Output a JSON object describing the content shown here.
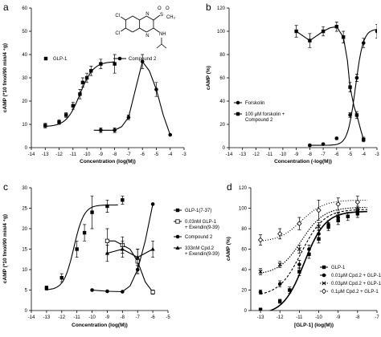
{
  "chart_data": [
    {
      "panel_label": "a",
      "type": "line",
      "xlabel": "Concentration (log(M))",
      "ylabel": "cAMP (*10 fmol/90 min/4 ⁴g)",
      "xlim": [
        -14,
        -3
      ],
      "ylim": [
        0,
        60
      ],
      "xticks": [
        -14,
        -13,
        -12,
        -11,
        -10,
        -9,
        -8,
        -7,
        -6,
        -5,
        -4,
        -3
      ],
      "yticks": [
        0,
        10,
        20,
        30,
        40,
        50,
        60
      ],
      "structure": {
        "atoms": [
          "Cl",
          "Cl",
          "N",
          "N",
          "S",
          "O",
          "O",
          "CH₃",
          "NH"
        ]
      },
      "legend_position": "middle",
      "series": [
        {
          "name": "GLP-1",
          "marker": "square",
          "points": [
            {
              "x": -13,
              "y": 9.5,
              "err": 1
            },
            {
              "x": -12,
              "y": 11,
              "err": 1
            },
            {
              "x": -11.5,
              "y": 14,
              "err": 1
            },
            {
              "x": -11,
              "y": 18,
              "err": 1.5
            },
            {
              "x": -10.5,
              "y": 23,
              "err": 2
            },
            {
              "x": -10.3,
              "y": 28,
              "err": 2
            },
            {
              "x": -10,
              "y": 30,
              "err": 2
            },
            {
              "x": -9.7,
              "y": 33,
              "err": 2
            },
            {
              "x": -9,
              "y": 36,
              "err": 2
            },
            {
              "x": -8,
              "y": 36,
              "err": 4
            }
          ],
          "curve": {
            "bottom": 9,
            "top": 37,
            "logEC50": -10.5,
            "hill": 0.9,
            "xmin": -13,
            "xmax": -8
          }
        },
        {
          "name": "Compound 2",
          "marker": "circle",
          "points": [
            {
              "x": -9,
              "y": 7.5,
              "err": 1
            },
            {
              "x": -8,
              "y": 7.5,
              "err": 1
            },
            {
              "x": -7,
              "y": 13,
              "err": 1
            },
            {
              "x": -6,
              "y": 37,
              "err": 3
            },
            {
              "x": -5,
              "y": 25,
              "err": 3
            },
            {
              "x": -4,
              "y": 5.5,
              "err": 0
            }
          ],
          "path": [
            [
              -9.5,
              7.5
            ],
            [
              -8,
              7.5
            ],
            [
              -7.5,
              9
            ],
            [
              -7,
              13
            ],
            [
              -6.5,
              25
            ],
            [
              -6,
              37
            ],
            [
              -5.5,
              33
            ],
            [
              -5,
              25
            ],
            [
              -4.5,
              14
            ],
            [
              -4,
              5.5
            ]
          ]
        }
      ]
    },
    {
      "panel_label": "b",
      "type": "line",
      "xlabel": "Concentration (-log(M))",
      "ylabel": "cAMP (%)",
      "xlim": [
        -14,
        -3
      ],
      "ylim": [
        0,
        120
      ],
      "xticks": [
        -14,
        -13,
        -12,
        -11,
        -10,
        -9,
        -8,
        -7,
        -6,
        -5,
        -4,
        -3
      ],
      "yticks": [
        0,
        20,
        40,
        60,
        80,
        100,
        120
      ],
      "legend_position": "bottom-left",
      "series": [
        {
          "name": "Forskolin",
          "marker": "circle",
          "points": [
            {
              "x": -8,
              "y": 2,
              "err": 1
            },
            {
              "x": -7,
              "y": 3,
              "err": 1
            },
            {
              "x": -6,
              "y": 8,
              "err": 1
            },
            {
              "x": -5,
              "y": 28,
              "err": 2
            },
            {
              "x": -4.5,
              "y": 60,
              "err": 3
            },
            {
              "x": -4,
              "y": 90,
              "err": 4
            },
            {
              "x": -3,
              "y": 100,
              "err": 6
            }
          ],
          "curve": {
            "bottom": 2,
            "top": 102,
            "logEC50": -4.6,
            "hill": 1.5,
            "xmin": -8,
            "xmax": -3
          }
        },
        {
          "name": "100 μM forskolin + Compound 2",
          "marker": "square",
          "points": [
            {
              "x": -9,
              "y": 100,
              "err": 5
            },
            {
              "x": -8,
              "y": 92,
              "err": 6
            },
            {
              "x": -7,
              "y": 100,
              "err": 4
            },
            {
              "x": -6,
              "y": 104,
              "err": 4
            },
            {
              "x": -5.5,
              "y": 95,
              "err": 5
            },
            {
              "x": -5,
              "y": 52,
              "err": 4
            },
            {
              "x": -4.5,
              "y": 28,
              "err": 3
            },
            {
              "x": -4,
              "y": 7,
              "err": 2
            }
          ],
          "path": [
            [
              -9,
              100
            ],
            [
              -8,
              92
            ],
            [
              -7.5,
              96
            ],
            [
              -7,
              100
            ],
            [
              -6.5,
              103
            ],
            [
              -6,
              104
            ],
            [
              -5.5,
              95
            ],
            [
              -5.2,
              75
            ],
            [
              -5,
              52
            ],
            [
              -4.7,
              35
            ],
            [
              -4.5,
              28
            ],
            [
              -4.2,
              15
            ],
            [
              -4,
              7
            ]
          ]
        }
      ]
    },
    {
      "panel_label": "c",
      "type": "line",
      "xlabel": "Concentration (log(M))",
      "ylabel": "cAMP (*10 fmol/90 min/4 ⁴g)",
      "xlim": [
        -14,
        -5
      ],
      "ylim": [
        0,
        30
      ],
      "xticks": [
        -14,
        -13,
        -12,
        -11,
        -10,
        -9,
        -8,
        -7,
        -6,
        -5
      ],
      "yticks": [
        0,
        5,
        10,
        15,
        20,
        25,
        30
      ],
      "legend_position": "right",
      "series": [
        {
          "name": "GLP-1(7-37)",
          "marker": "square",
          "points": [
            {
              "x": -13,
              "y": 5.5,
              "err": 0.5
            },
            {
              "x": -12,
              "y": 8,
              "err": 1
            },
            {
              "x": -11,
              "y": 15,
              "err": 2
            },
            {
              "x": -10.5,
              "y": 19,
              "err": 2
            },
            {
              "x": -10,
              "y": 24,
              "err": 4
            },
            {
              "x": -9,
              "y": 25.5,
              "err": 1.5
            },
            {
              "x": -8,
              "y": 27,
              "err": 1
            }
          ],
          "curve": {
            "bottom": 5,
            "top": 25.8,
            "logEC50": -11.2,
            "hill": 1.3,
            "xmin": -13,
            "xmax": -8.3
          }
        },
        {
          "name": "0.03nM GLP-1 + Exendin(9-39)",
          "marker": "open-square",
          "points": [
            {
              "x": -9,
              "y": 17,
              "err": 3
            },
            {
              "x": -8,
              "y": 16,
              "err": 2
            },
            {
              "x": -7,
              "y": 12,
              "err": 3
            },
            {
              "x": -6,
              "y": 4.5,
              "err": 0.5
            }
          ],
          "path": [
            [
              -9,
              17
            ],
            [
              -8.5,
              17
            ],
            [
              -8,
              16
            ],
            [
              -7.5,
              15
            ],
            [
              -7,
              12
            ],
            [
              -6.5,
              7
            ],
            [
              -6,
              4.5
            ]
          ]
        },
        {
          "name": "Compound 2",
          "marker": "circle",
          "points": [
            {
              "x": -10,
              "y": 5,
              "err": 0
            },
            {
              "x": -9,
              "y": 4.7,
              "err": 0
            },
            {
              "x": -8,
              "y": 4.6,
              "err": 0
            },
            {
              "x": -7,
              "y": 10,
              "err": 1
            },
            {
              "x": -6,
              "y": 26,
              "err": 0
            }
          ],
          "path": [
            [
              -10,
              5
            ],
            [
              -9,
              4.7
            ],
            [
              -8,
              4.6
            ],
            [
              -7.5,
              6
            ],
            [
              -7,
              10
            ],
            [
              -6.5,
              17
            ],
            [
              -6,
              26
            ]
          ]
        },
        {
          "name": "333nM Cpd.2 + Exendin(9-39)",
          "marker": "triangle",
          "points": [
            {
              "x": -9,
              "y": 14,
              "err": 2
            },
            {
              "x": -8,
              "y": 15,
              "err": 2
            },
            {
              "x": -7,
              "y": 13,
              "err": 2
            },
            {
              "x": -6,
              "y": 15,
              "err": 2
            }
          ],
          "path": [
            [
              -9,
              14
            ],
            [
              -8,
              15
            ],
            [
              -7,
              13
            ],
            [
              -6,
              15
            ]
          ]
        }
      ]
    },
    {
      "panel_label": "d",
      "type": "line",
      "xlabel": "[GLP-1] (log(M))",
      "ylabel": "cAMP (%)",
      "xlim": [
        -13.5,
        -7
      ],
      "ylim": [
        0,
        120
      ],
      "xticks": [
        -13,
        -12,
        -11,
        -10,
        -9,
        -8,
        -7
      ],
      "yticks": [
        0,
        20,
        40,
        60,
        80,
        100,
        120
      ],
      "legend_position": "bottom-right",
      "series": [
        {
          "name": "GLP-1",
          "marker": "square",
          "points": [
            {
              "x": -13,
              "y": 1,
              "err": 1
            },
            {
              "x": -12,
              "y": 9,
              "err": 2
            },
            {
              "x": -11.5,
              "y": 20,
              "err": 3
            },
            {
              "x": -11,
              "y": 38,
              "err": 4
            },
            {
              "x": -10.5,
              "y": 55,
              "err": 4
            },
            {
              "x": -10,
              "y": 70,
              "err": 4
            },
            {
              "x": -9.5,
              "y": 82,
              "err": 4
            },
            {
              "x": -9,
              "y": 88,
              "err": 4
            },
            {
              "x": -8.5,
              "y": 92,
              "err": 4
            },
            {
              "x": -8,
              "y": 95,
              "err": 4
            }
          ],
          "curve": {
            "bottom": -4,
            "top": 97,
            "logEC50": -10.75,
            "hill": 0.8,
            "xmin": -13,
            "xmax": -7.5
          }
        },
        {
          "name": "0.01μM Cpd.2 + GLP-1",
          "marker": "circle",
          "points": [
            {
              "x": -13,
              "y": 18,
              "err": 2
            },
            {
              "x": -12,
              "y": 26,
              "err": 3
            },
            {
              "x": -11,
              "y": 45,
              "err": 4
            },
            {
              "x": -10.5,
              "y": 60,
              "err": 4
            },
            {
              "x": -10,
              "y": 75,
              "err": 4
            },
            {
              "x": -9.5,
              "y": 84,
              "err": 4
            },
            {
              "x": -9,
              "y": 91,
              "err": 4
            },
            {
              "x": -8,
              "y": 97,
              "err": 4
            }
          ],
          "curve": {
            "bottom": 14,
            "top": 99,
            "logEC50": -10.9,
            "hill": 0.75,
            "xmin": -13,
            "xmax": -7.5
          }
        },
        {
          "name": "0.03μM Cpd.2 + GLP-1",
          "marker": "cross",
          "points": [
            {
              "x": -13,
              "y": 38,
              "err": 3
            },
            {
              "x": -12,
              "y": 45,
              "err": 3
            },
            {
              "x": -11,
              "y": 60,
              "err": 4
            },
            {
              "x": -10,
              "y": 82,
              "err": 4
            },
            {
              "x": -9,
              "y": 92,
              "err": 4
            },
            {
              "x": -8,
              "y": 98,
              "err": 4
            }
          ],
          "curve": {
            "bottom": 35,
            "top": 101,
            "logEC50": -10.9,
            "hill": 0.75,
            "xmin": -13,
            "xmax": -7.5
          }
        },
        {
          "name": "0.1μM Cpd.2 + GLP-1",
          "marker": "open-diamond",
          "points": [
            {
              "x": -13,
              "y": 69,
              "err": 5
            },
            {
              "x": -12,
              "y": 75,
              "err": 5
            },
            {
              "x": -11,
              "y": 85,
              "err": 6
            },
            {
              "x": -10,
              "y": 98,
              "err": 10
            },
            {
              "x": -9,
              "y": 104,
              "err": 6
            },
            {
              "x": -8,
              "y": 106,
              "err": 6
            }
          ],
          "curve": {
            "bottom": 67,
            "top": 108,
            "logEC50": -10.9,
            "hill": 0.75,
            "xmin": -13,
            "xmax": -7.5
          }
        }
      ]
    }
  ]
}
